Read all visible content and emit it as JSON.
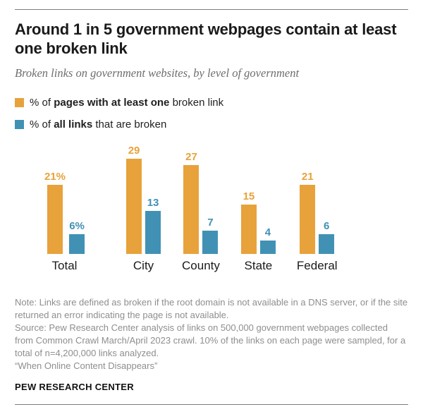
{
  "page": {
    "title": "Around 1 in 5 government webpages contain at least one broken link",
    "subtitle": "Broken links on government websites, by level of government",
    "footer_brand": "PEW RESEARCH CENTER"
  },
  "colors": {
    "orange": "#E8A23B",
    "blue": "#4191B5"
  },
  "legend": [
    {
      "prefix": "% of ",
      "bold": "pages with at least one",
      "suffix": " broken link",
      "color_key": "orange"
    },
    {
      "prefix": "% of ",
      "bold": "all links",
      "suffix": " that are broken",
      "color_key": "blue"
    }
  ],
  "notes": {
    "note": "Note: Links are defined as broken if the root domain is not available in a DNS server, or if the site returned an error indicating the page is not available.",
    "source": "Source: Pew Research Center analysis of links on 500,000 government webpages collected from Common Crawl March/April 2023 crawl. 10% of the links on each page were sampled, for a total of n=4,200,000 links analyzed.",
    "report": "“When Online Content Disappears”"
  },
  "chart_data": {
    "type": "bar",
    "title": "Broken links on government websites, by level of government",
    "categories": [
      "Total",
      "City",
      "County",
      "State",
      "Federal"
    ],
    "series": [
      {
        "name": "% of pages with at least one broken link",
        "color_key": "orange",
        "values": [
          21,
          29,
          27,
          15,
          21
        ],
        "labels": [
          "21%",
          "29",
          "27",
          "15",
          "21"
        ]
      },
      {
        "name": "% of all links that are broken",
        "color_key": "blue",
        "values": [
          6,
          13,
          7,
          4,
          6
        ],
        "labels": [
          "6%",
          "13",
          "7",
          "4",
          "6"
        ]
      }
    ],
    "unit": "percent",
    "value_range": [
      0,
      29
    ],
    "grid": false,
    "axis_lines": false,
    "legend_position": "top-left"
  }
}
